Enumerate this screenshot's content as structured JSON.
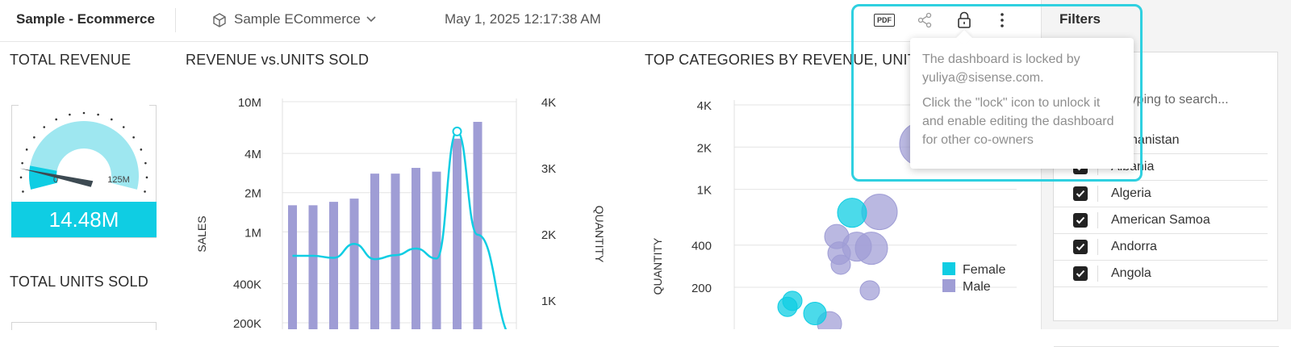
{
  "header": {
    "dashboard_title": "Sample - Ecommerce",
    "datasource": "Sample ECommerce",
    "timestamp": "May 1, 2025 12:17:38 AM",
    "toolbar": {
      "pdf_label": "PDF"
    }
  },
  "tooltip": {
    "line1": "The dashboard is locked by yuliya@sisense.com.",
    "line2": "Click the \"lock\" icon to unlock it and enable editing the dashboard for other co-owners"
  },
  "filters": {
    "title": "Filters",
    "search_placeholder": "Start typing to search...",
    "items": [
      "Afghanistan",
      "Albania",
      "Algeria",
      "American Samoa",
      "Andorra",
      "Angola"
    ]
  },
  "widgets": {
    "total_revenue": {
      "title": "TOTAL REVENUE",
      "value": "14.48M",
      "min_label": "0",
      "max_label": "125M",
      "fill_fraction": 0.12
    },
    "total_units": {
      "title": "TOTAL UNITS SOLD"
    },
    "revenue_units": {
      "title": "REVENUE vs.UNITS SOLD"
    },
    "top_categories": {
      "title": "TOP CATEGORIES BY REVENUE, UNITS"
    }
  },
  "colors": {
    "accent": "#0fcde3",
    "bar": "#9f9dd5",
    "highlight": "#2fd0e0"
  },
  "chart_data": [
    {
      "type": "bar",
      "title": "REVENUE vs.UNITS SOLD",
      "ylabel": "SALES",
      "y2label": "QUANTITY",
      "yscale": "log",
      "yticks": [
        "10M",
        "4M",
        "2M",
        "1M",
        "400K",
        "200K"
      ],
      "y2ticks": [
        "4K",
        "3K",
        "2K",
        "1K"
      ],
      "series": [
        {
          "name": "SALES",
          "kind": "bar",
          "values": [
            1600000,
            1600000,
            1700000,
            1800000,
            2800000,
            2800000,
            3100000,
            2900000,
            5200000,
            7000000
          ]
        },
        {
          "name": "QUANTITY",
          "kind": "line",
          "values": [
            1670,
            1670,
            1640,
            1850,
            1620,
            1680,
            1780,
            1630,
            3550,
            1990
          ]
        }
      ]
    },
    {
      "type": "scatter",
      "title": "TOP CATEGORIES BY REVENUE, UNITS",
      "ylabel": "QUANTITY",
      "yscale": "log",
      "yticks": [
        "4K",
        "2K",
        "1K",
        "400",
        "200"
      ],
      "legend": [
        "Female",
        "Male"
      ],
      "series": [
        {
          "name": "Female",
          "points": [
            [
              1,
              680,
              18
            ],
            [
              2,
              160,
              12
            ],
            [
              3,
              130,
              14
            ],
            [
              4,
              145,
              12
            ]
          ]
        },
        {
          "name": "Male",
          "points": [
            [
              5,
              2100,
              27
            ],
            [
              6,
              690,
              22
            ],
            [
              7,
              460,
              15
            ],
            [
              8,
              390,
              18
            ],
            [
              9,
              380,
              20
            ],
            [
              10,
              350,
              14
            ],
            [
              11,
              290,
              12
            ],
            [
              12,
              190,
              12
            ],
            [
              13,
              110,
              15
            ]
          ]
        }
      ]
    }
  ]
}
